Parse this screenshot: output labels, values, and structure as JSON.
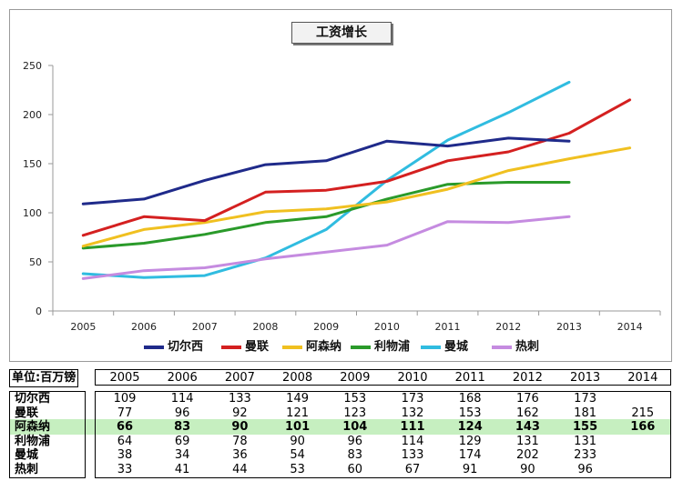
{
  "chart_data": {
    "type": "line",
    "title": "工资增长",
    "xlabel": "",
    "ylabel": "",
    "x": [
      "2005",
      "2006",
      "2007",
      "2008",
      "2009",
      "2010",
      "2011",
      "2012",
      "2013",
      "2014"
    ],
    "ylim": [
      0,
      250
    ],
    "yticks": [
      0,
      50,
      100,
      150,
      200,
      250
    ],
    "grid": false,
    "legend_position": "bottom",
    "series": [
      {
        "name": "切尔西",
        "color": "#1f2a8a",
        "values": [
          109,
          114,
          133,
          149,
          153,
          173,
          168,
          176,
          173,
          null
        ]
      },
      {
        "name": "曼联",
        "color": "#d42020",
        "values": [
          77,
          96,
          92,
          121,
          123,
          132,
          153,
          162,
          181,
          215
        ]
      },
      {
        "name": "阿森纳",
        "color": "#f0c020",
        "values": [
          66,
          83,
          90,
          101,
          104,
          111,
          124,
          143,
          155,
          166
        ]
      },
      {
        "name": "利物浦",
        "color": "#2a9a2a",
        "values": [
          64,
          69,
          78,
          90,
          96,
          114,
          129,
          131,
          131,
          null
        ]
      },
      {
        "name": "曼城",
        "color": "#30bce0",
        "values": [
          38,
          34,
          36,
          54,
          83,
          133,
          174,
          202,
          233,
          null
        ]
      },
      {
        "name": "热刺",
        "color": "#c58be0",
        "values": [
          33,
          41,
          44,
          53,
          60,
          67,
          91,
          90,
          96,
          null
        ]
      }
    ]
  },
  "table": {
    "unit_label": "单位:百万镑",
    "highlight_row": 2,
    "rows": [
      {
        "name": "切尔西",
        "cells": [
          "109",
          "114",
          "133",
          "149",
          "153",
          "173",
          "168",
          "176",
          "173",
          ""
        ]
      },
      {
        "name": "曼联",
        "cells": [
          "77",
          "96",
          "92",
          "121",
          "123",
          "132",
          "153",
          "162",
          "181",
          "215"
        ]
      },
      {
        "name": "阿森纳",
        "cells": [
          "66",
          "83",
          "90",
          "101",
          "104",
          "111",
          "124",
          "143",
          "155",
          "166"
        ]
      },
      {
        "name": "利物浦",
        "cells": [
          "64",
          "69",
          "78",
          "90",
          "96",
          "114",
          "129",
          "131",
          "131",
          ""
        ]
      },
      {
        "name": "曼城",
        "cells": [
          "38",
          "34",
          "36",
          "54",
          "83",
          "133",
          "174",
          "202",
          "233",
          ""
        ]
      },
      {
        "name": "热刺",
        "cells": [
          "33",
          "41",
          "44",
          "53",
          "60",
          "67",
          "91",
          "90",
          "96",
          ""
        ]
      }
    ]
  }
}
